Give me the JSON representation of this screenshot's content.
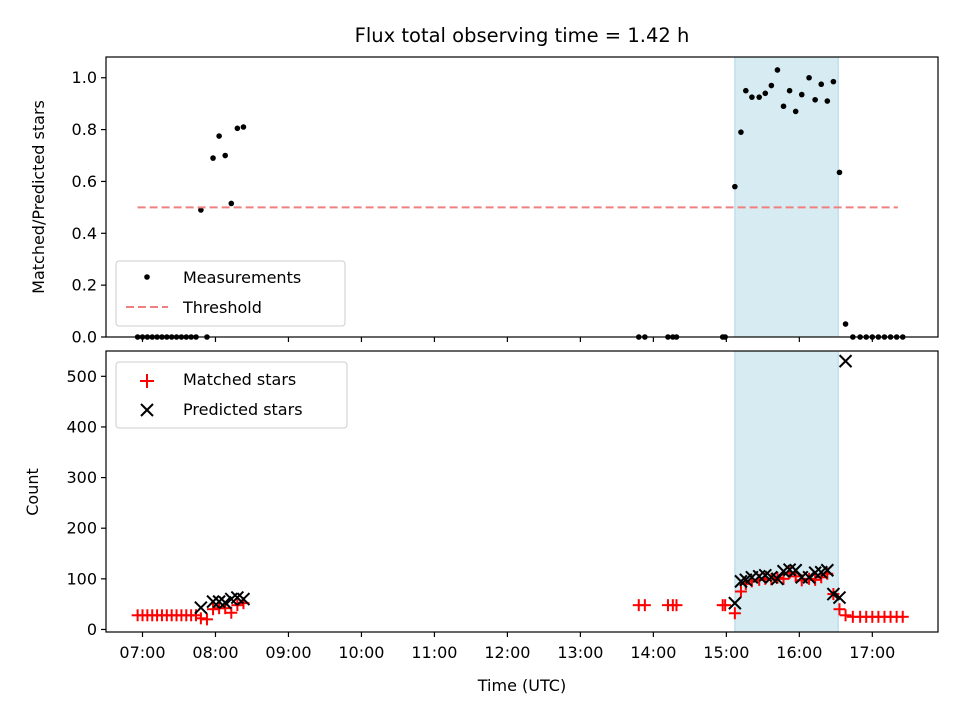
{
  "chart_data": {
    "title": "Flux total observing time = 1.42 h",
    "time_ticks": [
      "07:00",
      "08:00",
      "09:00",
      "10:00",
      "11:00",
      "12:00",
      "13:00",
      "14:00",
      "15:00",
      "16:00",
      "17:00"
    ],
    "xlim": [
      "06:30",
      "17:54"
    ],
    "xlabel": "Time (UTC)",
    "highlight_span": [
      "15:07",
      "16:32"
    ],
    "colors": {
      "measurements": "#000000",
      "threshold": "#f08080",
      "matched": "#ff0000",
      "predicted": "#000000",
      "span": "#add8e6"
    },
    "panels": [
      {
        "type": "scatter",
        "ylabel": "Matched/Predicted stars",
        "ylim": [
          0,
          1.08
        ],
        "yticks": [
          "0.0",
          "0.2",
          "0.4",
          "0.6",
          "0.8",
          "1.0"
        ],
        "legend": {
          "placement": "lower-left",
          "entries": [
            "Measurements",
            "Threshold"
          ]
        },
        "series": [
          {
            "name": "Measurements",
            "marker": "dot",
            "points": [
              [
                "06:56",
                0
              ],
              [
                "07:00",
                0
              ],
              [
                "07:04",
                0
              ],
              [
                "07:08",
                0
              ],
              [
                "07:12",
                0
              ],
              [
                "07:16",
                0
              ],
              [
                "07:20",
                0
              ],
              [
                "07:24",
                0
              ],
              [
                "07:28",
                0
              ],
              [
                "07:32",
                0
              ],
              [
                "07:36",
                0
              ],
              [
                "07:40",
                0
              ],
              [
                "07:44",
                0
              ],
              [
                "07:48",
                0.49
              ],
              [
                "07:53",
                0
              ],
              [
                "07:58",
                0.69
              ],
              [
                "08:03",
                0.775
              ],
              [
                "08:08",
                0.7
              ],
              [
                "08:13",
                0.515
              ],
              [
                "08:18",
                0.805
              ],
              [
                "08:23",
                0.81
              ],
              [
                "13:48",
                0
              ],
              [
                "13:53",
                0
              ],
              [
                "14:12",
                0
              ],
              [
                "14:16",
                0
              ],
              [
                "14:19",
                0
              ],
              [
                "14:57",
                0
              ],
              [
                "14:59",
                0
              ],
              [
                "15:07",
                0.58
              ],
              [
                "15:12",
                0.79
              ],
              [
                "15:16",
                0.95
              ],
              [
                "15:21",
                0.925
              ],
              [
                "15:27",
                0.925
              ],
              [
                "15:32",
                0.94
              ],
              [
                "15:37",
                0.97
              ],
              [
                "15:42",
                1.03
              ],
              [
                "15:47",
                0.89
              ],
              [
                "15:52",
                0.95
              ],
              [
                "15:57",
                0.87
              ],
              [
                "16:02",
                0.935
              ],
              [
                "16:08",
                1.0
              ],
              [
                "16:13",
                0.915
              ],
              [
                "16:18",
                0.975
              ],
              [
                "16:23",
                0.91
              ],
              [
                "16:28",
                0.985
              ],
              [
                "16:33",
                0.635
              ],
              [
                "16:38",
                0.05
              ],
              [
                "16:44",
                0
              ],
              [
                "16:50",
                0
              ],
              [
                "16:55",
                0
              ],
              [
                "17:00",
                0
              ],
              [
                "17:05",
                0
              ],
              [
                "17:10",
                0
              ],
              [
                "17:15",
                0
              ],
              [
                "17:20",
                0
              ],
              [
                "17:25",
                0
              ]
            ]
          },
          {
            "name": "Threshold",
            "marker": "dashed-line",
            "points": [
              [
                "06:56",
                0.5
              ],
              [
                "17:21",
                0.5
              ]
            ]
          }
        ]
      },
      {
        "type": "scatter",
        "ylabel": "Count",
        "ylim": [
          -5,
          550
        ],
        "yticks": [
          "0",
          "100",
          "200",
          "300",
          "400",
          "500"
        ],
        "legend": {
          "placement": "upper-left",
          "entries": [
            "Matched stars",
            "Predicted stars"
          ]
        },
        "series": [
          {
            "name": "Matched stars",
            "marker": "plus",
            "points": [
              [
                "06:56",
                28
              ],
              [
                "07:00",
                28
              ],
              [
                "07:04",
                28
              ],
              [
                "07:08",
                28
              ],
              [
                "07:12",
                28
              ],
              [
                "07:16",
                28
              ],
              [
                "07:20",
                28
              ],
              [
                "07:24",
                28
              ],
              [
                "07:28",
                28
              ],
              [
                "07:32",
                28
              ],
              [
                "07:36",
                28
              ],
              [
                "07:40",
                28
              ],
              [
                "07:44",
                28
              ],
              [
                "07:48",
                22
              ],
              [
                "07:53",
                20
              ],
              [
                "07:58",
                40
              ],
              [
                "08:03",
                42
              ],
              [
                "08:08",
                42
              ],
              [
                "08:13",
                33
              ],
              [
                "08:18",
                48
              ],
              [
                "08:23",
                52
              ],
              [
                "13:48",
                48
              ],
              [
                "13:53",
                48
              ],
              [
                "14:12",
                48
              ],
              [
                "14:16",
                48
              ],
              [
                "14:19",
                48
              ],
              [
                "14:57",
                48
              ],
              [
                "14:59",
                48
              ],
              [
                "15:07",
                32
              ],
              [
                "15:12",
                75
              ],
              [
                "15:16",
                90
              ],
              [
                "15:21",
                95
              ],
              [
                "15:27",
                98
              ],
              [
                "15:32",
                100
              ],
              [
                "15:37",
                99
              ],
              [
                "15:42",
                102
              ],
              [
                "15:47",
                100
              ],
              [
                "15:52",
                112
              ],
              [
                "15:57",
                105
              ],
              [
                "16:02",
                97
              ],
              [
                "16:08",
                100
              ],
              [
                "16:13",
                98
              ],
              [
                "16:18",
                103
              ],
              [
                "16:23",
                110
              ],
              [
                "16:28",
                70
              ],
              [
                "16:33",
                40
              ],
              [
                "16:38",
                28
              ],
              [
                "16:44",
                25
              ],
              [
                "16:50",
                25
              ],
              [
                "16:55",
                25
              ],
              [
                "17:00",
                25
              ],
              [
                "17:05",
                25
              ],
              [
                "17:10",
                25
              ],
              [
                "17:15",
                25
              ],
              [
                "17:20",
                25
              ],
              [
                "17:25",
                25
              ]
            ]
          },
          {
            "name": "Predicted stars",
            "marker": "x",
            "points": [
              [
                "07:48",
                43
              ],
              [
                "07:58",
                55
              ],
              [
                "08:03",
                55
              ],
              [
                "08:08",
                53
              ],
              [
                "08:13",
                60
              ],
              [
                "08:18",
                63
              ],
              [
                "08:23",
                60
              ],
              [
                "15:07",
                52
              ],
              [
                "15:12",
                95
              ],
              [
                "15:16",
                98
              ],
              [
                "15:21",
                103
              ],
              [
                "15:27",
                105
              ],
              [
                "15:32",
                107
              ],
              [
                "15:37",
                103
              ],
              [
                "15:42",
                100
              ],
              [
                "15:47",
                115
              ],
              [
                "15:52",
                118
              ],
              [
                "15:57",
                117
              ],
              [
                "16:02",
                103
              ],
              [
                "16:08",
                103
              ],
              [
                "16:13",
                112
              ],
              [
                "16:18",
                113
              ],
              [
                "16:23",
                117
              ],
              [
                "16:28",
                70
              ],
              [
                "16:33",
                63
              ],
              [
                "16:38",
                530
              ]
            ]
          }
        ]
      }
    ]
  }
}
